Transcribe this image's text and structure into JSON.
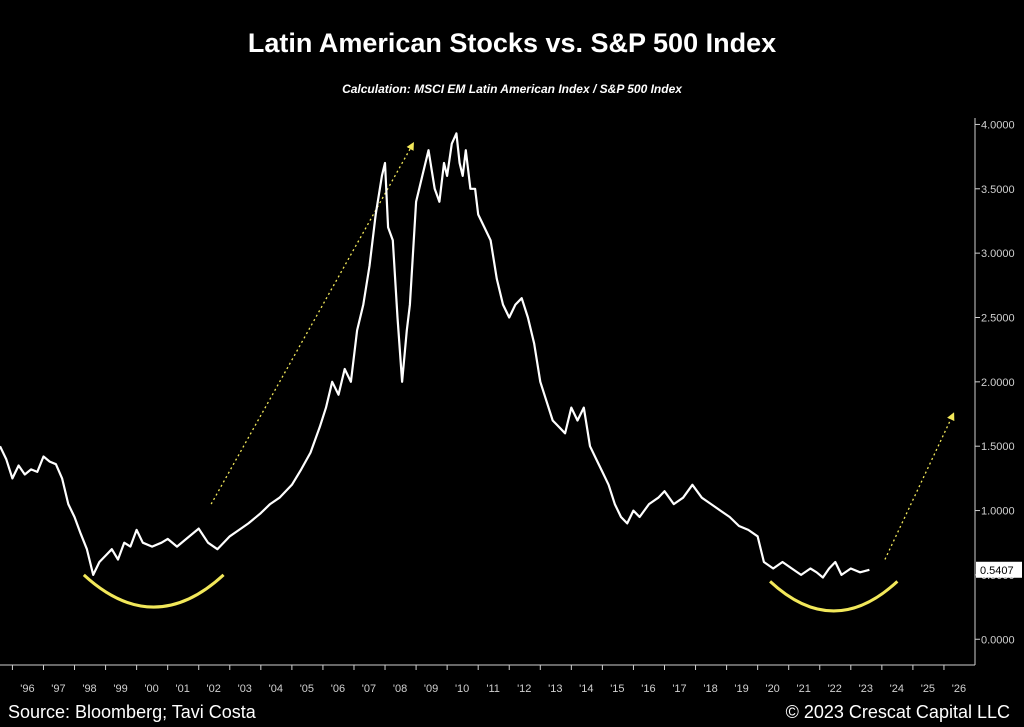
{
  "chart_data": {
    "type": "line",
    "title": "Latin American Stocks vs. S&P 500 Index",
    "subtitle": "Calculation: MSCI EM Latin American Index / S&P 500 Index",
    "x_tick_labels": [
      "'96",
      "'97",
      "'98",
      "'99",
      "'00",
      "'01",
      "'02",
      "'03",
      "'04",
      "'05",
      "'06",
      "'07",
      "'08",
      "'09",
      "'10",
      "'11",
      "'12",
      "'13",
      "'14",
      "'15",
      "'16",
      "'17",
      "'18",
      "'19",
      "'20",
      "'21",
      "'22",
      "'23",
      "'24",
      "'25",
      "'26"
    ],
    "y_tick_labels": [
      "4.0000",
      "3.5000",
      "3.0000",
      "2.5000",
      "2.0000",
      "1.5000",
      "1.0000",
      "0.5000",
      "0.0000"
    ],
    "ylim": [
      -0.2,
      4.05
    ],
    "xlim": [
      1995.6,
      2027.0
    ],
    "last_value_label": "0.5407",
    "series": [
      {
        "x": [
          1995.6,
          1995.8,
          1996.0,
          1996.2,
          1996.4,
          1996.6,
          1996.8,
          1997.0,
          1997.2,
          1997.4,
          1997.6,
          1997.8,
          1998.0,
          1998.2,
          1998.4,
          1998.6,
          1998.8,
          1999.0,
          1999.2,
          1999.4,
          1999.6,
          1999.8,
          2000.0,
          2000.2,
          2000.5,
          2000.8,
          2001.0,
          2001.3,
          2001.6,
          2002.0,
          2002.3,
          2002.6,
          2003.0,
          2003.3,
          2003.6,
          2004.0,
          2004.3,
          2004.6,
          2005.0,
          2005.3,
          2005.6,
          2005.9,
          2006.1,
          2006.3,
          2006.5,
          2006.7,
          2006.9,
          2007.1,
          2007.3,
          2007.5,
          2007.7,
          2007.9,
          2008.0,
          2008.1,
          2008.25,
          2008.4,
          2008.55,
          2008.7,
          2008.8,
          2008.9,
          2009.0,
          2009.2,
          2009.4,
          2009.6,
          2009.75,
          2009.9,
          2010.0,
          2010.15,
          2010.3,
          2010.4,
          2010.5,
          2010.6,
          2010.75,
          2010.9,
          2011.0,
          2011.2,
          2011.4,
          2011.6,
          2011.8,
          2012.0,
          2012.2,
          2012.4,
          2012.6,
          2012.8,
          2013.0,
          2013.2,
          2013.4,
          2013.6,
          2013.8,
          2014.0,
          2014.2,
          2014.4,
          2014.6,
          2014.8,
          2015.0,
          2015.2,
          2015.4,
          2015.6,
          2015.8,
          2016.0,
          2016.2,
          2016.5,
          2016.8,
          2017.0,
          2017.3,
          2017.6,
          2017.9,
          2018.2,
          2018.5,
          2018.8,
          2019.1,
          2019.4,
          2019.7,
          2020.0,
          2020.2,
          2020.5,
          2020.8,
          2021.1,
          2021.4,
          2021.7,
          2021.9,
          2022.1,
          2022.3,
          2022.5,
          2022.7,
          2023.0,
          2023.3,
          2023.6
        ],
        "y": [
          1.5,
          1.4,
          1.25,
          1.35,
          1.28,
          1.32,
          1.3,
          1.42,
          1.38,
          1.36,
          1.25,
          1.05,
          0.95,
          0.82,
          0.7,
          0.5,
          0.6,
          0.65,
          0.7,
          0.62,
          0.75,
          0.72,
          0.85,
          0.75,
          0.72,
          0.75,
          0.78,
          0.72,
          0.78,
          0.86,
          0.75,
          0.7,
          0.8,
          0.85,
          0.9,
          0.98,
          1.05,
          1.1,
          1.2,
          1.32,
          1.45,
          1.65,
          1.8,
          2.0,
          1.9,
          2.1,
          2.0,
          2.4,
          2.6,
          2.9,
          3.3,
          3.6,
          3.7,
          3.2,
          3.1,
          2.5,
          2.0,
          2.4,
          2.6,
          3.0,
          3.4,
          3.6,
          3.8,
          3.5,
          3.4,
          3.7,
          3.6,
          3.85,
          3.93,
          3.7,
          3.6,
          3.8,
          3.5,
          3.5,
          3.3,
          3.2,
          3.1,
          2.8,
          2.6,
          2.5,
          2.6,
          2.65,
          2.5,
          2.3,
          2.0,
          1.85,
          1.7,
          1.65,
          1.6,
          1.8,
          1.7,
          1.8,
          1.5,
          1.4,
          1.3,
          1.2,
          1.05,
          0.95,
          0.9,
          1.0,
          0.95,
          1.05,
          1.1,
          1.15,
          1.05,
          1.1,
          1.2,
          1.1,
          1.05,
          1.0,
          0.95,
          0.88,
          0.85,
          0.8,
          0.6,
          0.55,
          0.6,
          0.55,
          0.5,
          0.55,
          0.52,
          0.48,
          0.55,
          0.6,
          0.5,
          0.55,
          0.52,
          0.54
        ]
      }
    ],
    "annotations": {
      "left_arrow": {
        "x1": 2002.4,
        "y1": 1.05,
        "x2": 2008.9,
        "y2": 3.85
      },
      "right_arrow": {
        "x1": 2024.1,
        "y1": 0.62,
        "x2": 2026.3,
        "y2": 1.75
      },
      "left_curve": {
        "x1": 1998.3,
        "x2": 2002.8,
        "y_ends": 0.5,
        "y_bottom": 0.25
      },
      "right_curve": {
        "x1": 2020.4,
        "x2": 2024.5,
        "y_ends": 0.45,
        "y_bottom": 0.22
      }
    },
    "colors": {
      "line": "#ffffff",
      "accent": "#f2e85a",
      "axis": "#d0d0d0"
    }
  },
  "footer": {
    "source": "Source: Bloomberg; Tavi Costa",
    "copyright": "© 2023 Crescat Capital LLC"
  }
}
